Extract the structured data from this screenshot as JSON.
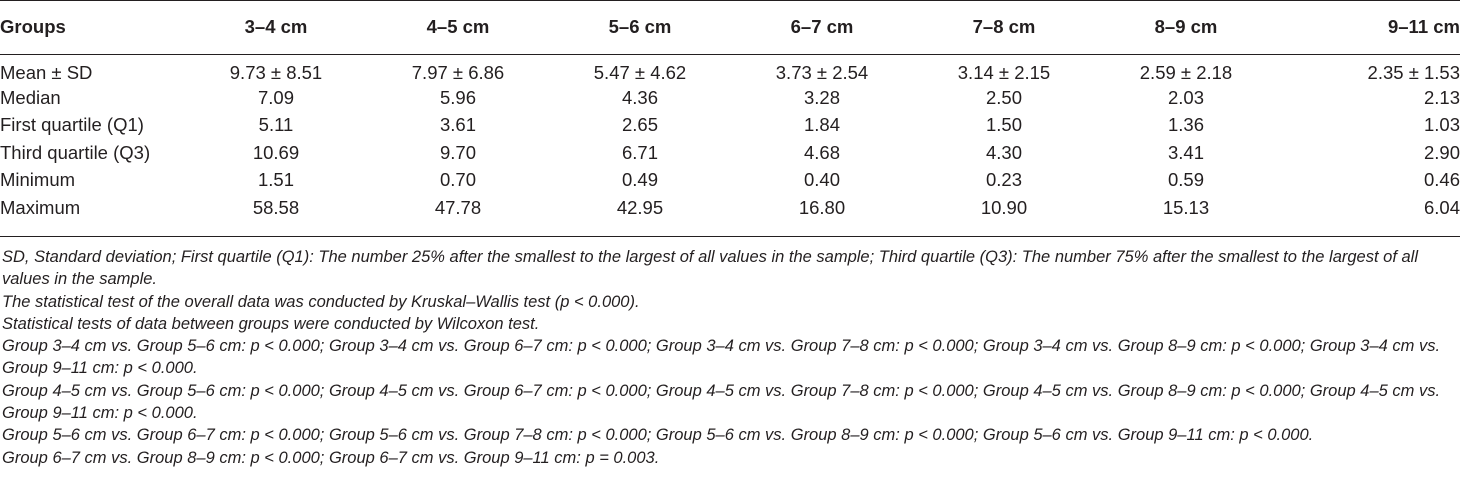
{
  "table": {
    "columns": [
      "Groups",
      "3–4 cm",
      "4–5 cm",
      "5–6 cm",
      "6–7 cm",
      "7–8 cm",
      "8–9 cm",
      "9–11 cm"
    ],
    "rows": [
      {
        "label": "Mean ± SD",
        "values": [
          "9.73 ± 8.51",
          "7.97 ± 6.86",
          "5.47 ± 4.62",
          "3.73 ± 2.54",
          "3.14 ± 2.15",
          "2.59 ± 2.18",
          "2.35 ± 1.53"
        ]
      },
      {
        "label": "Median",
        "values": [
          "7.09",
          "5.96",
          "4.36",
          "3.28",
          "2.50",
          "2.03",
          "2.13"
        ]
      },
      {
        "label": "First quartile (Q1)",
        "values": [
          "5.11",
          "3.61",
          "2.65",
          "1.84",
          "1.50",
          "1.36",
          "1.03"
        ]
      },
      {
        "label": "Third quartile (Q3)",
        "values": [
          "10.69",
          "9.70",
          "6.71",
          "4.68",
          "4.30",
          "3.41",
          "2.90"
        ]
      },
      {
        "label": "Minimum",
        "values": [
          "1.51",
          "0.70",
          "0.49",
          "0.40",
          "0.23",
          "0.59",
          "0.46"
        ]
      },
      {
        "label": "Maximum",
        "values": [
          "58.58",
          "47.78",
          "42.95",
          "16.80",
          "10.90",
          "15.13",
          "6.04"
        ]
      }
    ]
  },
  "footnotes": [
    "SD, Standard deviation; First quartile (Q1): The number 25% after the smallest to the largest of all values in the sample; Third quartile (Q3): The number 75% after the smallest to the largest of all values in the sample.",
    "The statistical test of the overall data was conducted by Kruskal–Wallis test (p < 0.000).",
    "Statistical tests of data between groups were conducted by Wilcoxon test.",
    "Group 3–4 cm vs. Group 5–6 cm: p < 0.000; Group 3–4 cm vs. Group 6–7 cm: p < 0.000; Group 3–4 cm vs. Group 7–8 cm: p < 0.000; Group 3–4 cm vs. Group 8–9 cm: p < 0.000; Group 3–4 cm vs. Group 9–11 cm: p < 0.000.",
    "Group 4–5 cm vs. Group 5–6 cm: p < 0.000; Group 4–5 cm vs. Group 6–7 cm: p < 0.000; Group 4–5 cm vs. Group 7–8 cm: p < 0.000; Group 4–5 cm vs. Group 8–9 cm: p < 0.000; Group 4–5 cm vs. Group 9–11 cm: p < 0.000.",
    "Group 5–6 cm vs. Group 6–7 cm: p < 0.000; Group 5–6 cm vs. Group 7–8 cm: p < 0.000; Group 5–6 cm vs. Group 8–9 cm: p < 0.000; Group 5–6 cm vs. Group 9–11 cm: p < 0.000.",
    "Group 6–7 cm vs. Group 8–9 cm: p < 0.000; Group 6–7 cm vs. Group 9–11 cm: p = 0.003."
  ]
}
